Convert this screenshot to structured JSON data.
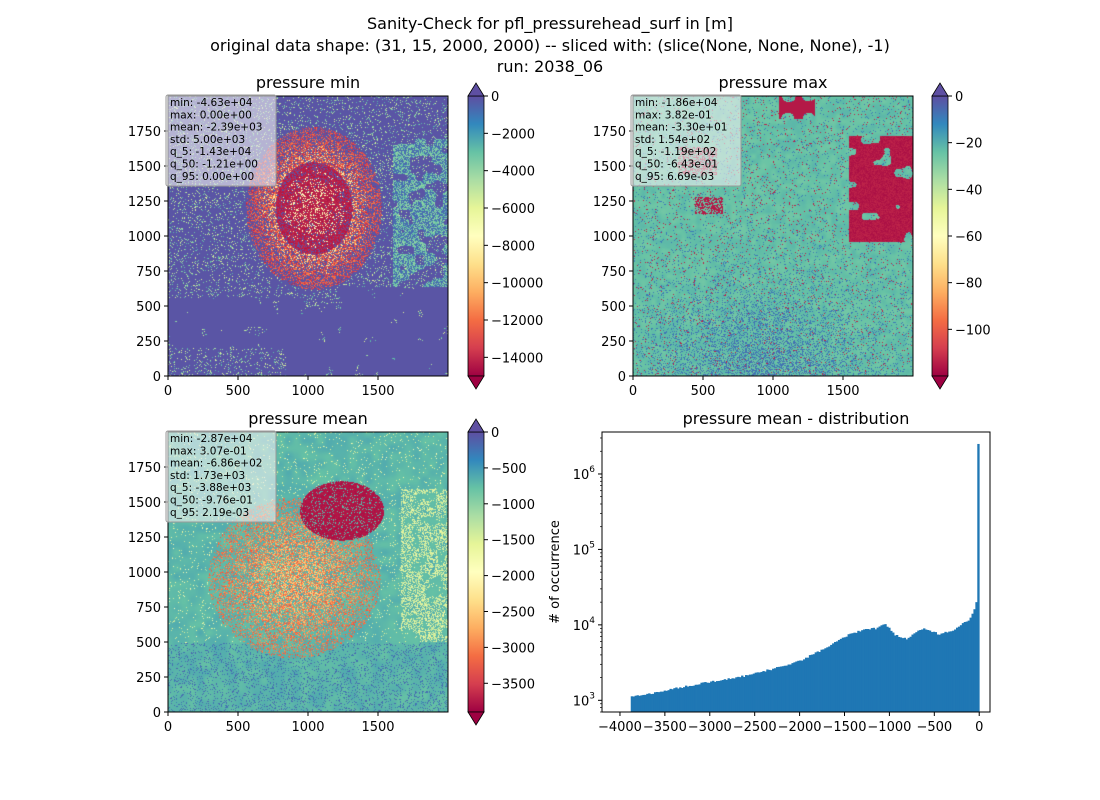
{
  "suptitle": {
    "line1": "Sanity-Check for pfl_pressurehead_surf in [m]",
    "line2": "original data shape: (31, 15, 2000, 2000) -- sliced with: (slice(None, None, None), -1)",
    "line3": "run: 2038_06"
  },
  "colors": {
    "spectral": [
      "#9e0142",
      "#d53e4f",
      "#f46d43",
      "#fdae61",
      "#fee08b",
      "#ffffbf",
      "#e6f598",
      "#abdda4",
      "#66c2a5",
      "#3288bd",
      "#5e4fa2"
    ],
    "hist_bar": "#1f77b4"
  },
  "chart_data": [
    {
      "type": "heatmap",
      "title": "pressure min",
      "xlim": [
        0,
        2000
      ],
      "ylim": [
        0,
        2000
      ],
      "xticks": [
        "0",
        "500",
        "1000",
        "1500"
      ],
      "yticks": [
        "0",
        "250",
        "500",
        "750",
        "1000",
        "1250",
        "1500",
        "1750"
      ],
      "colorbar": {
        "cmap": "Spectral",
        "vmin": -15000,
        "vmax": 0,
        "ticks": [
          "0",
          "−2000",
          "−4000",
          "−6000",
          "−8000",
          "−10000",
          "−12000",
          "−14000"
        ],
        "tick_values": [
          0,
          -2000,
          -4000,
          -6000,
          -8000,
          -10000,
          -12000,
          -14000
        ],
        "extend": "both"
      },
      "stats": [
        "min: -4.63e+04",
        "max: 0.00e+00",
        "mean: -2.39e+03",
        "std: 5.00e+03",
        "q_5: -1.43e+04",
        "q_50: -1.21e+00",
        "q_95: 0.00e+00"
      ]
    },
    {
      "type": "heatmap",
      "title": "pressure max",
      "xlim": [
        0,
        2000
      ],
      "ylim": [
        0,
        2000
      ],
      "xticks": [
        "0",
        "500",
        "1000",
        "1500"
      ],
      "yticks": [
        "0",
        "250",
        "500",
        "750",
        "1000",
        "1250",
        "1500",
        "1750"
      ],
      "colorbar": {
        "cmap": "Spectral",
        "vmin": -120,
        "vmax": 0,
        "ticks": [
          "0",
          "−20",
          "−40",
          "−60",
          "−80",
          "−100"
        ],
        "tick_values": [
          0,
          -20,
          -40,
          -60,
          -80,
          -100
        ],
        "extend": "both"
      },
      "stats": [
        "min: -1.86e+04",
        "max: 3.82e-01",
        "mean: -3.30e+01",
        "std: 1.54e+02",
        "q_5: -1.19e+02",
        "q_50: -6.43e-01",
        "q_95: 6.69e-03"
      ]
    },
    {
      "type": "heatmap",
      "title": "pressure mean",
      "xlim": [
        0,
        2000
      ],
      "ylim": [
        0,
        2000
      ],
      "xticks": [
        "0",
        "500",
        "1000",
        "1500"
      ],
      "yticks": [
        "0",
        "250",
        "500",
        "750",
        "1000",
        "1250",
        "1500",
        "1750"
      ],
      "colorbar": {
        "cmap": "Spectral",
        "vmin": -3900,
        "vmax": 0,
        "ticks": [
          "0",
          "−500",
          "−1000",
          "−1500",
          "−2000",
          "−2500",
          "−3000",
          "−3500"
        ],
        "tick_values": [
          0,
          -500,
          -1000,
          -1500,
          -2000,
          -2500,
          -3000,
          -3500
        ],
        "extend": "both"
      },
      "stats": [
        "min: -2.87e+04",
        "max: 3.07e-01",
        "mean: -6.86e+02",
        "std: 1.73e+03",
        "q_5: -3.88e+03",
        "q_50: -9.76e-01",
        "q_95: 2.19e-03"
      ]
    },
    {
      "type": "bar",
      "title": "pressure mean - distribution",
      "ylabel": "# of occurrence",
      "yscale": "log",
      "xlim": [
        -4200,
        120
      ],
      "ylim": [
        700,
        3600000
      ],
      "xticks": [
        "−4000",
        "−3500",
        "−3000",
        "−2500",
        "−2000",
        "−1500",
        "−1000",
        "−500",
        "0"
      ],
      "xtick_values": [
        -4000,
        -3500,
        -3000,
        -2500,
        -2000,
        -1500,
        -1000,
        -500,
        0
      ],
      "ytick_values": [
        1000,
        10000,
        100000,
        1000000
      ],
      "bin_range": [
        -3880,
        0
      ],
      "anchor_points": [
        [
          -3880,
          1100
        ],
        [
          -3700,
          1200
        ],
        [
          -3500,
          1350
        ],
        [
          -3300,
          1500
        ],
        [
          -3000,
          1750
        ],
        [
          -2700,
          2000
        ],
        [
          -2500,
          2250
        ],
        [
          -2200,
          2800
        ],
        [
          -2000,
          3300
        ],
        [
          -1700,
          5000
        ],
        [
          -1500,
          7000
        ],
        [
          -1300,
          8500
        ],
        [
          -1150,
          9000
        ],
        [
          -1050,
          10500
        ],
        [
          -950,
          7500
        ],
        [
          -800,
          6500
        ],
        [
          -700,
          8000
        ],
        [
          -600,
          9000
        ],
        [
          -450,
          7500
        ],
        [
          -300,
          8500
        ],
        [
          -200,
          10000
        ],
        [
          -100,
          12000
        ],
        [
          -40,
          18000
        ],
        [
          -10,
          25000
        ],
        [
          -2,
          2500000
        ]
      ]
    }
  ]
}
